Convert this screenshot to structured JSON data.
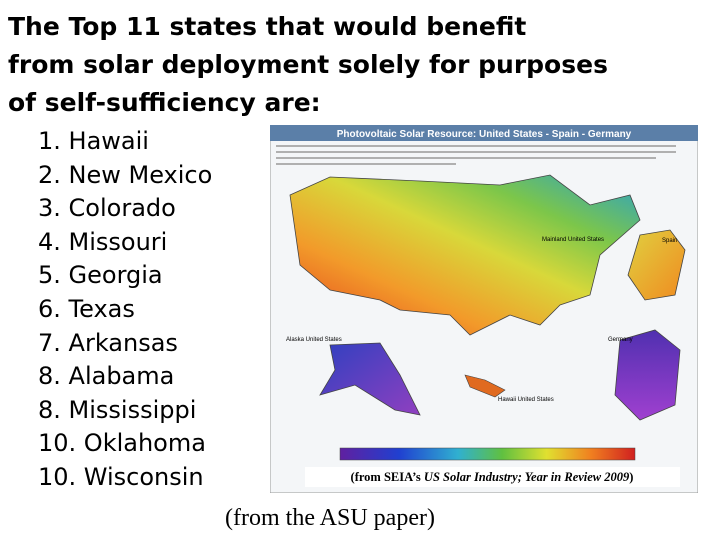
{
  "slide": {
    "title": [
      "The Top 11 states that would benefit",
      "from solar deployment solely for purposes",
      "of self-sufficiency are:"
    ],
    "items": [
      "1. Hawaii",
      "2. New Mexico",
      "3. Colorado",
      "4. Missouri",
      "5. Georgia",
      "6. Texas",
      "7. Arkansas",
      "8. Alabama",
      "8. Mississippi",
      "10. Oklahoma",
      "10. Wisconsin"
    ],
    "figure": {
      "title": "Photovoltaic Solar Resource: United States - Spain - Germany",
      "labels": [
        "Mainland United States",
        "Spain",
        "Germany",
        "Alaska United States",
        "Hawaii United States"
      ],
      "caption": {
        "before": "(from SEIA’s ",
        "italic": "US Solar Industry; Year in Review 2009",
        "after": ")"
      }
    },
    "source": "(from the ASU paper)"
  }
}
